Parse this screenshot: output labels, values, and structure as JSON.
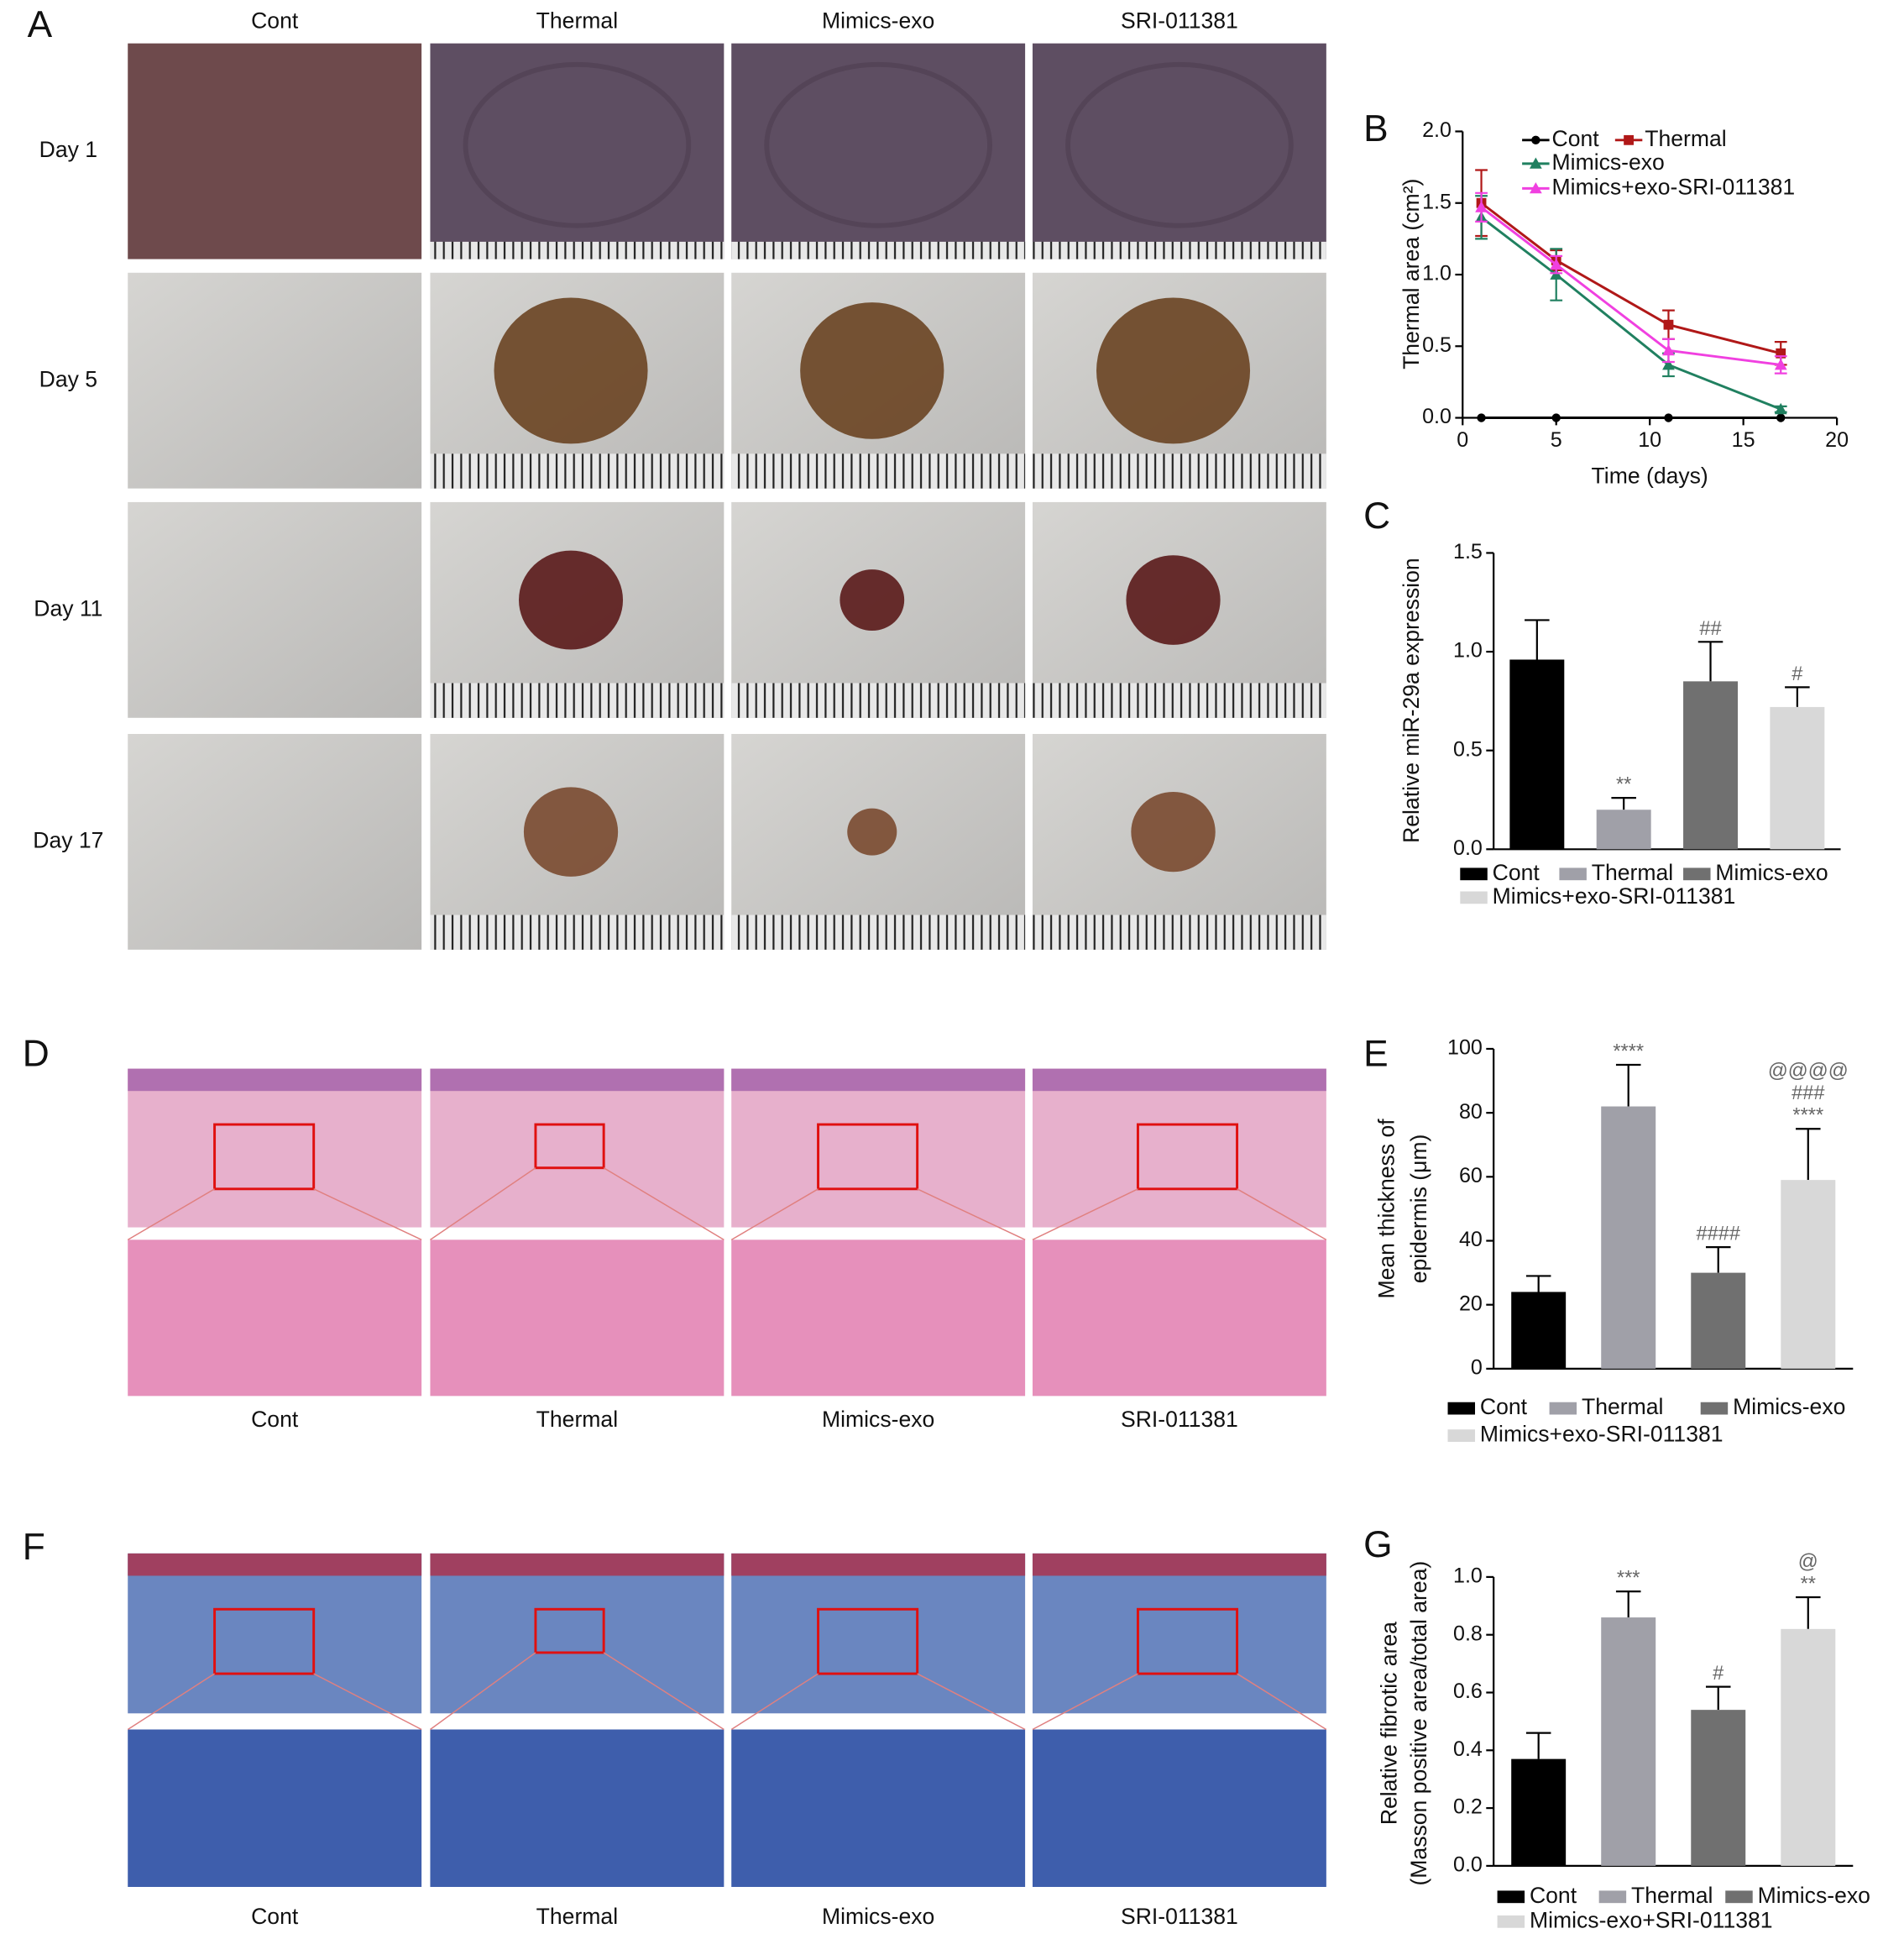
{
  "panel_labels": [
    "A",
    "B",
    "C",
    "D",
    "E",
    "F",
    "G"
  ],
  "panel_a": {
    "columns": [
      "Cont",
      "Thermal",
      "Mimics-exo",
      "SRI-011381"
    ],
    "rows": [
      "Day 1",
      "Day 5",
      "Day 11",
      "Day 17"
    ]
  },
  "panel_d": {
    "columns": [
      "Cont",
      "Thermal",
      "Mimics-exo",
      "SRI-011381"
    ]
  },
  "panel_f": {
    "columns": [
      "Cont",
      "Thermal",
      "Mimics-exo",
      "SRI-011381"
    ]
  },
  "chart_data": [
    {
      "type": "line",
      "x": [
        1,
        5,
        11,
        17
      ],
      "xlim": [
        0,
        20
      ],
      "xticks": [
        0,
        5,
        10,
        15,
        20
      ],
      "ylim": [
        0,
        2
      ],
      "yticks": [
        {
          "value": 0,
          "label": "0.0"
        },
        {
          "value": 0.5,
          "label": "0.5"
        },
        {
          "value": 1,
          "label": "1.0"
        },
        {
          "value": 1.5,
          "label": "1.5"
        },
        {
          "value": 2,
          "label": "2.0"
        }
      ],
      "x_label": "Time (days)",
      "y_label": "Thermal area (cm²)",
      "series": [
        {
          "name": "Cont",
          "color": "#000000",
          "marker": "circle",
          "values": [
            0,
            0,
            0,
            0
          ]
        },
        {
          "name": "Thermal",
          "color": "#b01818",
          "marker": "square",
          "values": [
            1.5,
            1.1,
            0.65,
            0.45
          ],
          "errors": [
            0.23,
            0.07,
            0.1,
            0.08
          ]
        },
        {
          "name": "Mimics-exo",
          "color": "#208060",
          "marker": "triangle",
          "values": [
            1.4,
            1.0,
            0.37,
            0.06
          ],
          "errors": [
            0.15,
            0.18,
            0.08,
            0.02
          ]
        },
        {
          "name": "Mimics+exo-SRI-011381",
          "color": "#f040e0",
          "marker": "triangle",
          "values": [
            1.47,
            1.07,
            0.47,
            0.37
          ],
          "errors": [
            0.1,
            0.06,
            0.08,
            0.06
          ]
        }
      ]
    },
    {
      "type": "bar",
      "categories": [
        "Cont",
        "Thermal",
        "Mimics-exo",
        "Mimics+exo-SRI-011381"
      ],
      "values": [
        0.96,
        0.2,
        0.85,
        0.72
      ],
      "errors": [
        0.2,
        0.06,
        0.2,
        0.1
      ],
      "colors": [
        "#000000",
        "#a0a0a8",
        "#707070",
        "#d8d8d8"
      ],
      "annotations": [
        null,
        [
          "**"
        ],
        [
          "##"
        ],
        [
          "#"
        ]
      ],
      "ylim": [
        0,
        1.5
      ],
      "yticks": [
        {
          "value": 0,
          "label": "0.0"
        },
        {
          "value": 0.5,
          "label": "0.5"
        },
        {
          "value": 1,
          "label": "1.0"
        },
        {
          "value": 1.5,
          "label": "1.5"
        }
      ],
      "y_label": "Relative miR-29a expression"
    },
    {
      "type": "bar",
      "categories": [
        "Cont",
        "Thermal",
        "Mimics-exo",
        "Mimics+exo-SRI-011381"
      ],
      "values": [
        24,
        82,
        30,
        59
      ],
      "errors": [
        5,
        13,
        8,
        16
      ],
      "colors": [
        "#000000",
        "#a0a0a8",
        "#707070",
        "#d8d8d8"
      ],
      "annotations": [
        null,
        [
          "****"
        ],
        [
          "####"
        ],
        [
          "@@@@",
          "###",
          "****"
        ]
      ],
      "ylim": [
        0,
        100
      ],
      "yticks": [
        0,
        20,
        40,
        60,
        80,
        100
      ],
      "y_label": [
        "Mean thickness of",
        "epidermis (μm)"
      ]
    },
    {
      "type": "bar",
      "categories": [
        "Cont",
        "Thermal",
        "Mimics-exo",
        "Mimics-exo+SRI-011381"
      ],
      "values": [
        0.37,
        0.86,
        0.54,
        0.82
      ],
      "errors": [
        0.09,
        0.09,
        0.08,
        0.11
      ],
      "colors": [
        "#000000",
        "#a0a0a8",
        "#707070",
        "#d8d8d8"
      ],
      "annotations": [
        null,
        [
          "***"
        ],
        [
          "#"
        ],
        [
          "@",
          "**"
        ]
      ],
      "ylim": [
        0,
        1
      ],
      "yticks": [
        {
          "value": 0,
          "label": "0.0"
        },
        {
          "value": 0.2,
          "label": "0.2"
        },
        {
          "value": 0.4,
          "label": "0.4"
        },
        {
          "value": 0.6,
          "label": "0.6"
        },
        {
          "value": 0.8,
          "label": "0.8"
        },
        {
          "value": 1,
          "label": "1.0"
        }
      ],
      "y_label": [
        "Relative fibrotic area",
        "(Masson positive area/total area)"
      ]
    }
  ]
}
